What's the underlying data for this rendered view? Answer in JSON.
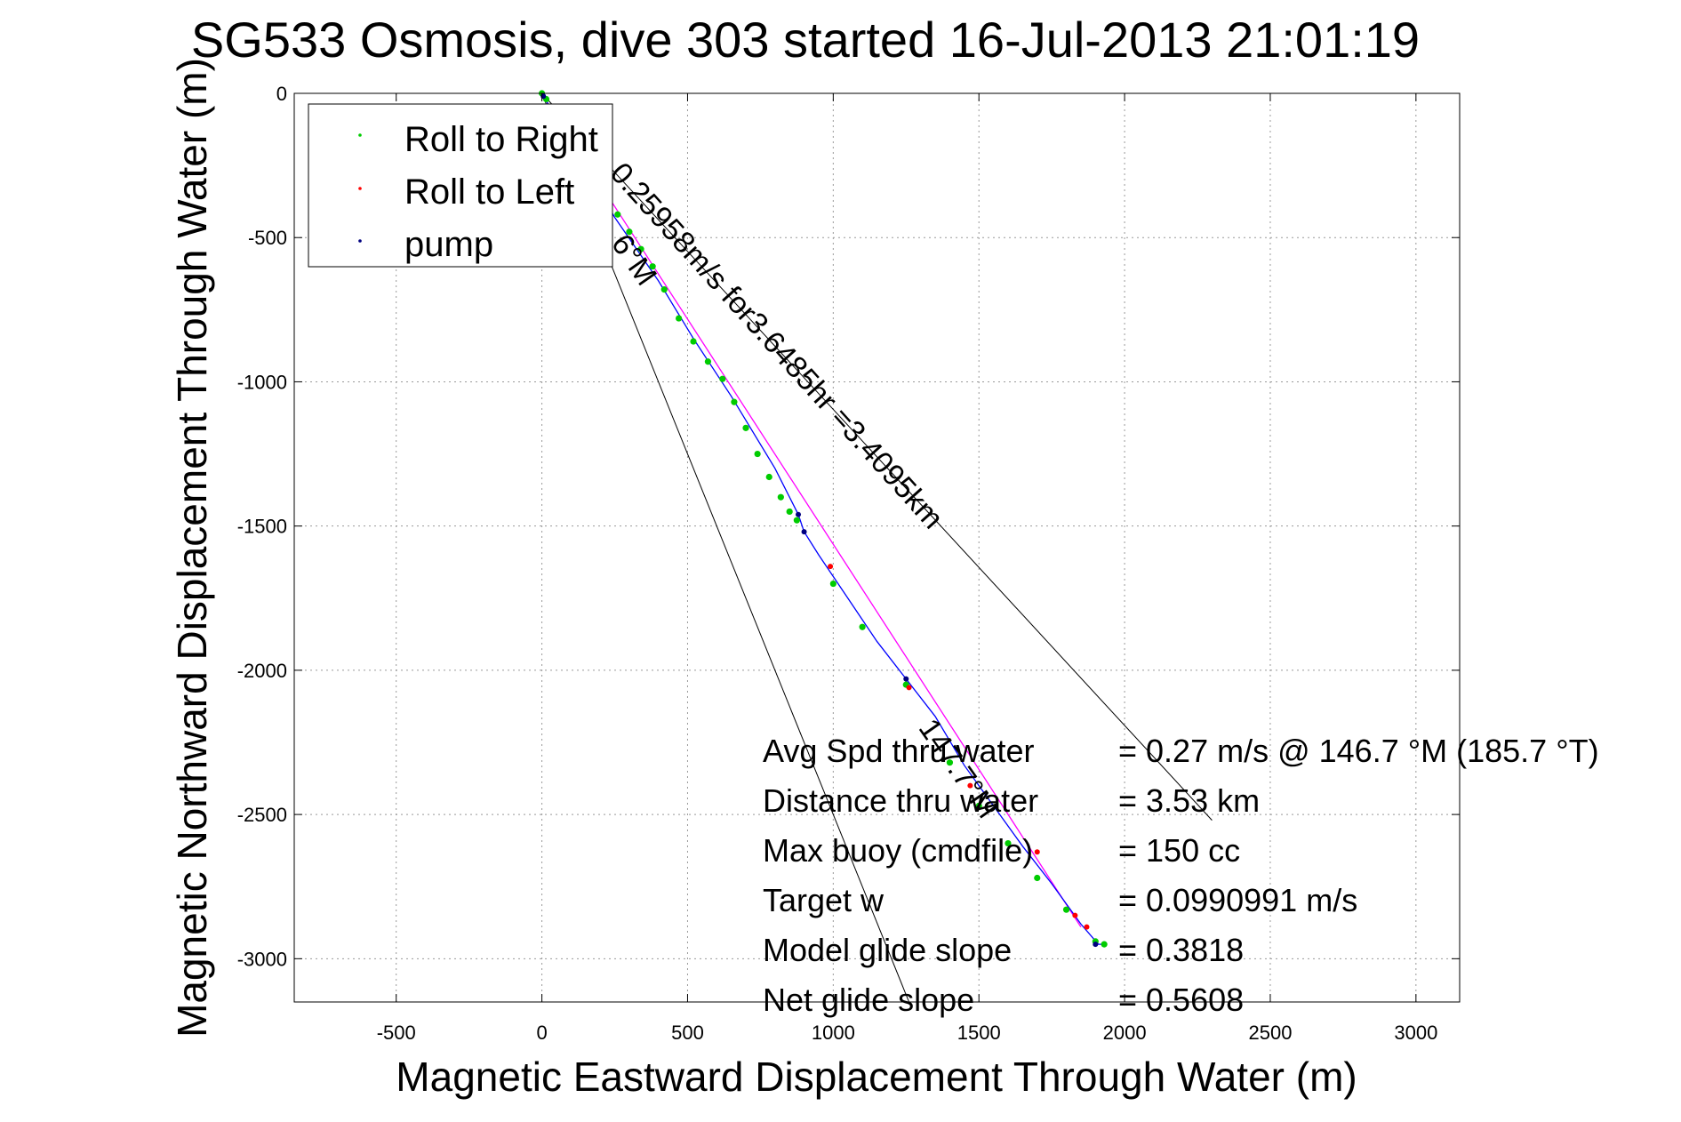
{
  "chart_data": {
    "type": "scatter",
    "title": "SG533 Osmosis, dive 303 started 16-Jul-2013 21:01:19",
    "xlabel": "Magnetic Eastward Displacement Through Water (m)",
    "ylabel": "Magnetic Northward Displacement Through Water (m)",
    "xlim": [
      -850,
      3150
    ],
    "ylim": [
      -3150,
      0
    ],
    "xticks": [
      -500,
      0,
      500,
      1000,
      1500,
      2000,
      2500,
      3000
    ],
    "yticks": [
      0,
      -500,
      -1000,
      -1500,
      -2000,
      -2500,
      -3000
    ],
    "grid": true,
    "legend_position": "top-left",
    "legend": [
      {
        "label": "Roll to Right",
        "color": "#00cc00"
      },
      {
        "label": "Roll to Left",
        "color": "#ff0000"
      },
      {
        "label": "pump",
        "color": "#000080"
      }
    ],
    "series": [
      {
        "name": "Roll to Right",
        "color": "#00cc00",
        "x": [
          0,
          15,
          40,
          70,
          100,
          140,
          180,
          220,
          260,
          300,
          340,
          380,
          420,
          470,
          520,
          570,
          620,
          660,
          700,
          740,
          780,
          820,
          850,
          875,
          1000,
          1100,
          1250,
          1400,
          1500,
          1600,
          1700,
          1800,
          1900,
          1930
        ],
        "y": [
          0,
          -20,
          -60,
          -110,
          -170,
          -230,
          -300,
          -360,
          -420,
          -480,
          -540,
          -600,
          -680,
          -780,
          -860,
          -930,
          -990,
          -1070,
          -1160,
          -1250,
          -1330,
          -1400,
          -1450,
          -1480,
          -1700,
          -1850,
          -2050,
          -2320,
          -2470,
          -2600,
          -2720,
          -2830,
          -2940,
          -2950
        ]
      },
      {
        "name": "Roll to Left",
        "color": "#ff0000",
        "x": [
          990,
          1260,
          1470,
          1700,
          1830,
          1870
        ],
        "y": [
          -1640,
          -2060,
          -2400,
          -2630,
          -2850,
          -2890
        ]
      },
      {
        "name": "pump",
        "color": "#000080",
        "x": [
          5,
          880,
          900,
          1250,
          1900
        ],
        "y": [
          -10,
          -1460,
          -1520,
          -2030,
          -2950
        ]
      }
    ],
    "track": {
      "color": "#0000ff",
      "x": [
        5,
        100,
        250,
        400,
        520,
        650,
        800,
        880,
        900,
        950,
        1050,
        1150,
        1250,
        1350,
        1450,
        1550,
        1650,
        1750,
        1850,
        1910,
        1930
      ],
      "y": [
        -10,
        -170,
        -430,
        -650,
        -850,
        -1050,
        -1300,
        -1460,
        -1520,
        -1600,
        -1750,
        -1900,
        -2030,
        -2160,
        -2330,
        -2470,
        -2610,
        -2740,
        -2880,
        -2950,
        -2950
      ]
    },
    "model_track": {
      "color": "#ff00ff",
      "x": [
        5,
        1850
      ],
      "y": [
        -10,
        -2890
      ]
    },
    "reference_lines": [
      {
        "x": [
          0,
          2300
        ],
        "y": [
          0,
          -2520
        ]
      },
      {
        "x": [
          0,
          1260
        ],
        "y": [
          0,
          -3150
        ]
      }
    ],
    "annotations": [
      {
        "text": "0.25958m/s for3.6485hr =3.4095km",
        "x": 230,
        "y": -280,
        "rotation_deg": 48
      },
      {
        "text": "6°M",
        "x": 235,
        "y": -520,
        "rotation_deg": 55
      },
      {
        "text": "147.7°M",
        "x": 1290,
        "y": -2200,
        "rotation_deg": 55
      }
    ],
    "info_labels": [
      "Avg Spd thru water",
      "Distance thru water",
      "Max buoy (cmdfile)",
      "Target w",
      "Model glide slope",
      "Net glide slope"
    ],
    "info_values": [
      "=  0.27 m/s @ 146.7 °M (185.7 °T)",
      "=  3.53 km",
      "= 150 cc",
      "= 0.0990991 m/s",
      "= 0.3818",
      "= 0.5608"
    ]
  }
}
